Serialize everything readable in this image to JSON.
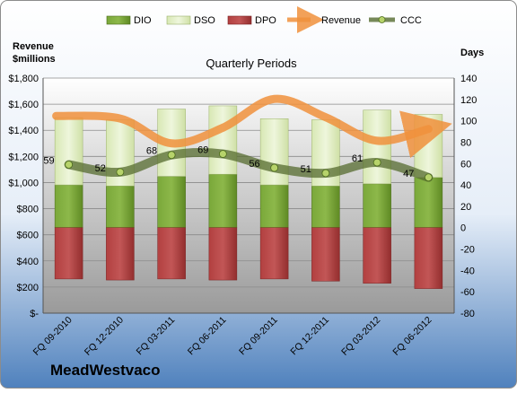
{
  "chart_data": {
    "type": "bar",
    "title": "Quarterly Periods",
    "company": "MeadWestvaco",
    "left_axis_label": [
      "Revenue",
      "$millions"
    ],
    "right_axis_label": "Days",
    "categories": [
      "FQ 09-2010",
      "FQ 12-2010",
      "FQ 03-2011",
      "FQ 06-2011",
      "FQ 09-2011",
      "FQ 12-2011",
      "FQ 03-2012",
      "FQ 06-2012"
    ],
    "left_ylim": [
      0,
      1800
    ],
    "left_ticks": [
      "$-",
      "$200",
      "$400",
      "$600",
      "$800",
      "$1,000",
      "$1,200",
      "$1,400",
      "$1,600",
      "$1,800"
    ],
    "right_ylim": [
      -80,
      140
    ],
    "right_ticks": [
      "-80",
      "-60",
      "-40",
      "-20",
      "0",
      "20",
      "40",
      "60",
      "80",
      "100",
      "120",
      "140"
    ],
    "legend": [
      "DIO",
      "DSO",
      "DPO",
      "Revenue",
      "CCC"
    ],
    "legend_position": "top",
    "series": [
      {
        "name": "DIO",
        "axis": "right",
        "color": "#6a9a2a",
        "values": [
          40,
          39,
          48,
          50,
          40,
          39,
          41,
          47
        ]
      },
      {
        "name": "DSO",
        "axis": "right",
        "color": "#e3f0c6",
        "values": [
          63,
          62,
          63,
          64,
          62,
          62,
          69,
          59
        ]
      },
      {
        "name": "DPO",
        "axis": "right",
        "color": "#b03a3a",
        "values": [
          -48,
          -49,
          -48,
          -49,
          -48,
          -50,
          -52,
          -57
        ]
      },
      {
        "name": "Revenue",
        "axis": "left",
        "color": "#f0903c",
        "values": [
          1510,
          1490,
          1300,
          1420,
          1640,
          1500,
          1320,
          1410
        ]
      },
      {
        "name": "CCC",
        "axis": "right",
        "color": "#556b2f",
        "values": [
          59,
          52,
          68,
          69,
          56,
          51,
          61,
          47
        ]
      }
    ],
    "ccc_labels": [
      "59",
      "52",
      "68",
      "69",
      "56",
      "51",
      "61",
      "47"
    ],
    "grid": true
  }
}
